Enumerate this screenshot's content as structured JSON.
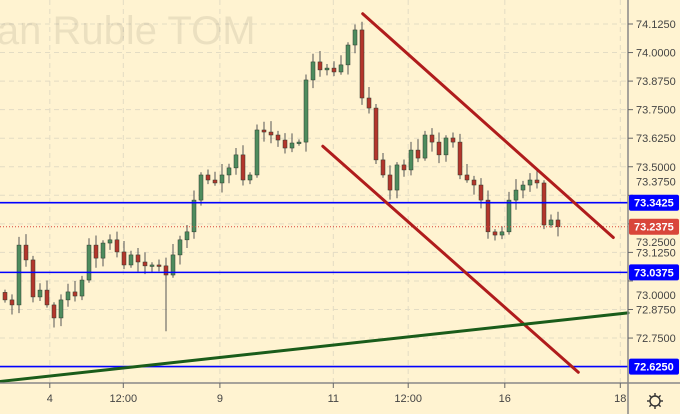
{
  "chart_data": {
    "type": "candlestick",
    "watermark": "ian Ruble TOM",
    "ylim": [
      72.56,
      74.17
    ],
    "y_ticks": [
      "72.7500",
      "72.8750",
      "73.0000",
      "73.1250",
      "73.2500",
      "73.3750",
      "73.5000",
      "73.6250",
      "73.7500",
      "73.8750",
      "74.0000",
      "74.1250"
    ],
    "x_ticks": [
      {
        "label": "4",
        "index": 6.4
      },
      {
        "label": "12:00",
        "index": 16.9
      },
      {
        "label": "9",
        "index": 30.7
      },
      {
        "label": "11",
        "index": 46.9
      },
      {
        "label": "12:00",
        "index": 57.6
      },
      {
        "label": "16",
        "index": 71.4
      },
      {
        "label": "18",
        "index": 87.9
      }
    ],
    "first_open": 72.95,
    "closes": [
      72.917,
      72.895,
      73.157,
      73.092,
      72.93,
      72.96,
      72.895,
      72.838,
      72.917,
      72.952,
      72.934,
      73.004,
      73.157,
      73.1,
      73.166,
      73.18,
      73.127,
      73.07,
      73.114,
      73.083,
      73.066,
      73.07,
      73.066,
      73.026,
      73.114,
      73.18,
      73.215,
      73.354,
      73.464,
      73.442,
      73.429,
      73.464,
      73.495,
      73.552,
      73.442,
      73.464,
      73.661,
      73.652,
      73.639,
      73.617,
      73.582,
      73.604,
      73.608,
      73.88,
      73.959,
      73.924,
      73.932,
      73.915,
      73.946,
      74.033,
      74.099,
      73.801,
      73.757,
      73.53,
      73.464,
      73.398,
      73.508,
      73.486,
      73.573,
      73.538,
      73.639,
      73.608,
      73.552,
      73.626,
      73.608,
      73.464,
      73.442,
      73.42,
      73.354,
      73.215,
      73.201,
      73.215,
      73.354,
      73.398,
      73.42,
      73.442,
      73.429,
      73.245,
      73.267,
      73.237
    ],
    "special_lows": {
      "23": 72.78
    },
    "horizontal_levels": [
      {
        "price": 73.3425,
        "label": "73.3425",
        "color": "#0000ff"
      },
      {
        "price": 73.0375,
        "label": "73.0375",
        "color": "#0000ff"
      },
      {
        "price": 72.625,
        "label": "72.6250",
        "color": "#0000ff"
      }
    ],
    "last_price": {
      "price": 73.2375,
      "label": "73.2375",
      "color": "#d9463b"
    },
    "trend_lines": [
      {
        "name": "channel-upper",
        "from": [
          51.1,
          74.17
        ],
        "to": [
          86.9,
          73.19
        ],
        "color": "#b01c1c"
      },
      {
        "name": "channel-lower",
        "from": [
          45.4,
          73.59
        ],
        "to": [
          81.9,
          72.6
        ],
        "color": "#b01c1c"
      },
      {
        "name": "support-line",
        "from": [
          -0.7,
          72.56
        ],
        "to": [
          89.0,
          72.86
        ],
        "color": "#1a5c1a"
      }
    ],
    "colors": {
      "up": "#4e8c5e",
      "down": "#b3362c",
      "background": "#fff3d1"
    }
  },
  "ui": {
    "settings_icon": "gear-icon"
  }
}
